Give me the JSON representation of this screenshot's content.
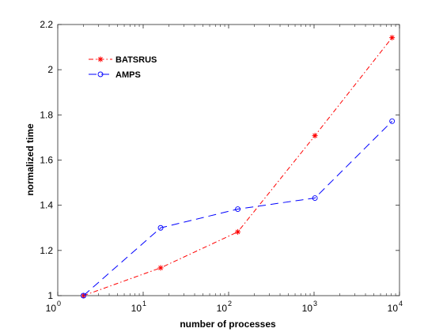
{
  "chart_data": {
    "type": "line",
    "xlabel": "number of processes",
    "ylabel": "normalized time",
    "xscale": "log",
    "xlim": [
      1,
      10000
    ],
    "ylim": [
      1,
      2.2
    ],
    "x_ticks": [
      {
        "value": 1,
        "base": "10",
        "exp": "0"
      },
      {
        "value": 10,
        "base": "10",
        "exp": "1"
      },
      {
        "value": 100,
        "base": "10",
        "exp": "2"
      },
      {
        "value": 1000,
        "base": "10",
        "exp": "3"
      },
      {
        "value": 10000,
        "base": "10",
        "exp": "4"
      }
    ],
    "y_ticks": [
      {
        "value": 1,
        "label": "1"
      },
      {
        "value": 1.2,
        "label": "1.2"
      },
      {
        "value": 1.4,
        "label": "1.4"
      },
      {
        "value": 1.6,
        "label": "1.6"
      },
      {
        "value": 1.8,
        "label": "1.8"
      },
      {
        "value": 2,
        "label": "2"
      },
      {
        "value": 2.2,
        "label": "2.2"
      }
    ],
    "grid": false,
    "legend_position": "top-left",
    "series": [
      {
        "name": "BATSRUS",
        "color": "#ff0000",
        "line_style": "dash-dot",
        "marker": "asterisk",
        "x": [
          2,
          16,
          128,
          1024,
          8192
        ],
        "y": [
          1.0,
          1.123,
          1.282,
          1.708,
          2.142
        ]
      },
      {
        "name": "AMPS",
        "color": "#0000ff",
        "line_style": "dashed",
        "marker": "circle",
        "x": [
          2,
          16,
          128,
          1024,
          8192
        ],
        "y": [
          1.0,
          1.3,
          1.383,
          1.432,
          1.772
        ]
      }
    ]
  }
}
